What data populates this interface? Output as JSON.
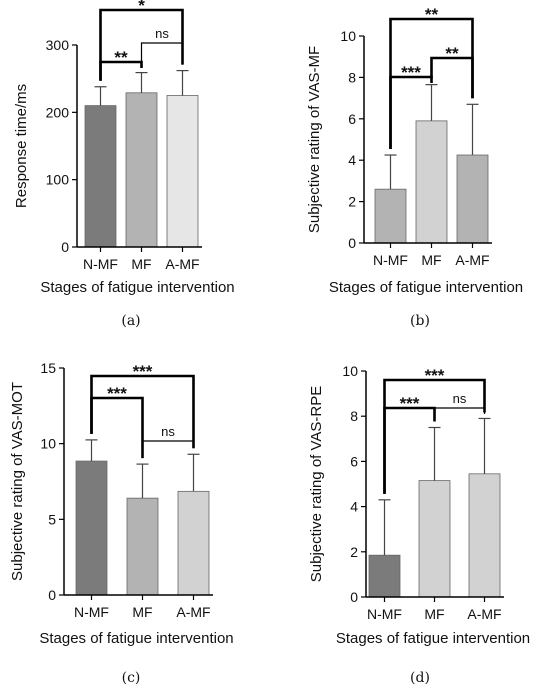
{
  "colors": {
    "dark": "#7b7b7b",
    "mid": "#b3b3b3",
    "light": "#d2d2d2",
    "lighter": "#e6e6e6",
    "axis": "#000000"
  },
  "chart_data": [
    {
      "panel": "(a)",
      "type": "bar",
      "categories": [
        "N-MF",
        "MF",
        "A-MF"
      ],
      "values": [
        210,
        229,
        225
      ],
      "error": [
        28,
        30,
        37
      ],
      "xlabel": "Stages of fatigue intervention",
      "ylabel": "Response time/ms",
      "ylim": [
        0,
        300
      ],
      "yticks": [
        "0",
        "100",
        "200",
        "300"
      ],
      "bar_colors": [
        "#7b7b7b",
        "#b3b3b3",
        "#e6e6e6"
      ],
      "significance": [
        {
          "from": 0,
          "to": 1,
          "label": "**"
        },
        {
          "from": 1,
          "to": 2,
          "label": "ns"
        },
        {
          "from": 0,
          "to": 2,
          "label": "*"
        }
      ]
    },
    {
      "panel": "(b)",
      "type": "bar",
      "categories": [
        "N-MF",
        "MF",
        "A-MF"
      ],
      "values": [
        2.6,
        5.9,
        4.25
      ],
      "error": [
        1.65,
        1.75,
        2.45
      ],
      "xlabel": "Stages of fatigue intervention",
      "ylabel": "Subjective rating of VAS-MF",
      "ylim": [
        0,
        10
      ],
      "yticks": [
        "0",
        "2",
        "4",
        "6",
        "8",
        "10"
      ],
      "bar_colors": [
        "#b3b3b3",
        "#d2d2d2",
        "#b3b3b3"
      ],
      "significance": [
        {
          "from": 0,
          "to": 1,
          "label": "***"
        },
        {
          "from": 1,
          "to": 2,
          "label": "**"
        },
        {
          "from": 0,
          "to": 2,
          "label": "**"
        }
      ]
    },
    {
      "panel": "(c)",
      "type": "bar",
      "categories": [
        "N-MF",
        "MF",
        "A-MF"
      ],
      "values": [
        8.85,
        6.4,
        6.85
      ],
      "error": [
        1.4,
        2.25,
        2.45
      ],
      "xlabel": "Stages of fatigue intervention",
      "ylabel": "Subjective rating of VAS-MOT",
      "ylim": [
        0,
        15
      ],
      "yticks": [
        "0",
        "5",
        "10",
        "15"
      ],
      "bar_colors": [
        "#7b7b7b",
        "#b3b3b3",
        "#d2d2d2"
      ],
      "significance": [
        {
          "from": 0,
          "to": 1,
          "label": "***"
        },
        {
          "from": 1,
          "to": 2,
          "label": "ns"
        },
        {
          "from": 0,
          "to": 2,
          "label": "***"
        }
      ]
    },
    {
      "panel": "(d)",
      "type": "bar",
      "categories": [
        "N-MF",
        "MF",
        "A-MF"
      ],
      "values": [
        1.85,
        5.15,
        5.45
      ],
      "error": [
        2.45,
        2.35,
        2.45
      ],
      "xlabel": "Stages of fatigue intervention",
      "ylabel": "Subjective rating of VAS-RPE",
      "ylim": [
        0,
        10
      ],
      "yticks": [
        "0",
        "2",
        "4",
        "6",
        "8",
        "10"
      ],
      "bar_colors": [
        "#7b7b7b",
        "#d2d2d2",
        "#d2d2d2"
      ],
      "significance": [
        {
          "from": 0,
          "to": 1,
          "label": "***"
        },
        {
          "from": 1,
          "to": 2,
          "label": "ns"
        },
        {
          "from": 0,
          "to": 2,
          "label": "***"
        }
      ]
    }
  ]
}
